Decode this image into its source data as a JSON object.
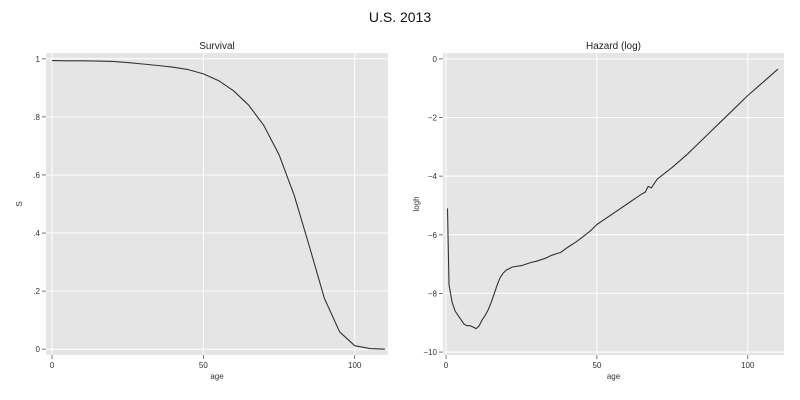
{
  "figure_title": "U.S. 2013",
  "chart_data": [
    {
      "type": "line",
      "title": "Survival",
      "xlabel": "age",
      "ylabel": "S",
      "xlim": [
        -2,
        111
      ],
      "ylim": [
        -0.02,
        1.02
      ],
      "xticks": [
        0,
        50,
        100
      ],
      "xtick_labels": [
        "0",
        "50",
        "100"
      ],
      "yticks": [
        0,
        0.2,
        0.4,
        0.6,
        0.8,
        1
      ],
      "ytick_labels": [
        "0",
        ".2",
        ".4",
        ".6",
        ".8",
        "1"
      ],
      "grid": true,
      "line_color": "#333333",
      "background": "#e5e5e5",
      "series": [
        {
          "x": [
            0,
            5,
            10,
            15,
            20,
            25,
            30,
            35,
            40,
            45,
            50,
            55,
            60,
            65,
            70,
            75,
            80,
            85,
            90,
            95,
            100,
            105,
            110
          ],
          "values": [
            0.994,
            0.993,
            0.993,
            0.992,
            0.991,
            0.987,
            0.982,
            0.977,
            0.971,
            0.963,
            0.948,
            0.925,
            0.89,
            0.84,
            0.77,
            0.67,
            0.53,
            0.355,
            0.175,
            0.06,
            0.012,
            0.002,
            0.0
          ]
        }
      ]
    },
    {
      "type": "line",
      "title": "Hazard (log)",
      "xlabel": "age",
      "ylabel": "logh",
      "xlim": [
        -1,
        112
      ],
      "ylim": [
        -10.1,
        0.2
      ],
      "xticks": [
        0,
        50,
        100
      ],
      "xtick_labels": [
        "0",
        "50",
        "100"
      ],
      "yticks": [
        -10,
        -8,
        -6,
        -4,
        -2,
        0
      ],
      "ytick_labels": [
        "−10",
        "−8",
        "−6",
        "−4",
        "−2",
        "0"
      ],
      "grid": true,
      "line_color": "#333333",
      "background": "#e5e5e5",
      "series": [
        {
          "x": [
            0.5,
            1,
            2,
            3,
            4,
            5,
            6,
            7,
            8,
            9,
            10,
            11,
            12,
            13,
            14,
            15,
            16,
            17,
            18,
            19,
            20,
            22,
            25,
            28,
            30,
            33,
            35,
            38,
            40,
            43,
            45,
            48,
            50,
            55,
            60,
            65,
            66,
            67,
            68,
            70,
            75,
            80,
            85,
            90,
            95,
            100,
            105,
            110
          ],
          "values": [
            -5.1,
            -7.7,
            -8.3,
            -8.6,
            -8.75,
            -8.9,
            -9.05,
            -9.1,
            -9.1,
            -9.15,
            -9.2,
            -9.1,
            -8.9,
            -8.75,
            -8.55,
            -8.3,
            -8.0,
            -7.7,
            -7.45,
            -7.3,
            -7.2,
            -7.1,
            -7.05,
            -6.95,
            -6.9,
            -6.8,
            -6.7,
            -6.6,
            -6.45,
            -6.25,
            -6.1,
            -5.85,
            -5.65,
            -5.3,
            -4.95,
            -4.6,
            -4.55,
            -4.35,
            -4.4,
            -4.1,
            -3.7,
            -3.25,
            -2.75,
            -2.25,
            -1.75,
            -1.25,
            -0.8,
            -0.35
          ]
        }
      ]
    }
  ]
}
